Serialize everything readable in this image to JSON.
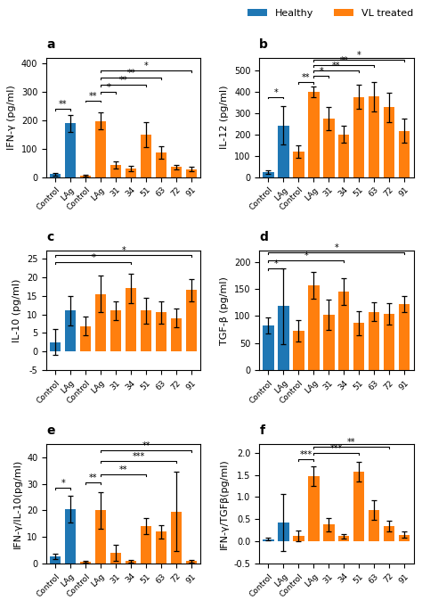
{
  "chart_data": [
    {
      "type": "bar",
      "title": "a",
      "y_label": "IFN-γ (pg/ml)",
      "categories": [
        "Control",
        "LAg",
        "Control",
        "LAg",
        "31",
        "34",
        "51",
        "63",
        "72",
        "91"
      ],
      "series": [
        {
          "name": "Healthy",
          "values": [
            10,
            190,
            null,
            null,
            null,
            null,
            null,
            null,
            null,
            null
          ],
          "errors": [
            4,
            30,
            null,
            null,
            null,
            null,
            null,
            null,
            null,
            null
          ]
        },
        {
          "name": "VL treated",
          "values": [
            null,
            null,
            5,
            198,
            43,
            30,
            150,
            87,
            35,
            28
          ],
          "errors": [
            null,
            null,
            2,
            30,
            12,
            8,
            45,
            22,
            8,
            8
          ]
        }
      ],
      "ylim": [
        0,
        420
      ],
      "yticks": [
        0,
        100,
        200,
        300,
        400
      ],
      "significance": [
        {
          "x1": 0,
          "x2": 1,
          "y": 235,
          "stars": "**"
        },
        {
          "x1": 2,
          "x2": 3,
          "y": 265,
          "stars": "**"
        },
        {
          "x1": 3,
          "x2": 4,
          "y": 295,
          "stars": "*"
        },
        {
          "x1": 3,
          "x2": 6,
          "y": 320,
          "stars": "**"
        },
        {
          "x1": 3,
          "x2": 7,
          "y": 345,
          "stars": "**"
        },
        {
          "x1": 3,
          "x2": 9,
          "y": 370,
          "stars": "*"
        }
      ],
      "legend": "upper right"
    },
    {
      "type": "bar",
      "title": "b",
      "y_label": "IL-12 (pg/ml)",
      "categories": [
        "Control",
        "LAg",
        "Control",
        "LAg",
        "31",
        "34",
        "51",
        "63",
        "72",
        "91"
      ],
      "series": [
        {
          "name": "Healthy",
          "values": [
            25,
            242,
            null,
            null,
            null,
            null,
            null,
            null,
            null,
            null
          ],
          "errors": [
            8,
            90,
            null,
            null,
            null,
            null,
            null,
            null,
            null,
            null
          ]
        },
        {
          "name": "VL treated",
          "values": [
            null,
            null,
            120,
            402,
            275,
            200,
            377,
            378,
            328,
            218
          ],
          "errors": [
            null,
            null,
            28,
            25,
            55,
            40,
            55,
            70,
            70,
            55
          ]
        }
      ],
      "ylim": [
        0,
        560
      ],
      "yticks": [
        0,
        100,
        200,
        300,
        400,
        500
      ],
      "significance": [
        {
          "x1": 0,
          "x2": 1,
          "y": 370,
          "stars": "*"
        },
        {
          "x1": 2,
          "x2": 3,
          "y": 440,
          "stars": "**"
        },
        {
          "x1": 3,
          "x2": 4,
          "y": 468,
          "stars": "*"
        },
        {
          "x1": 3,
          "x2": 6,
          "y": 493,
          "stars": "**"
        },
        {
          "x1": 3,
          "x2": 7,
          "y": 518,
          "stars": "**"
        },
        {
          "x1": 3,
          "x2": 9,
          "y": 543,
          "stars": "*"
        }
      ]
    },
    {
      "type": "bar",
      "title": "c",
      "y_label": "IL-10 (pg/ml)",
      "categories": [
        "Control",
        "LAg",
        "Control",
        "LAg",
        "31",
        "34",
        "51",
        "63",
        "72",
        "91"
      ],
      "series": [
        {
          "name": "Healthy",
          "values": [
            2.5,
            11,
            null,
            null,
            null,
            null,
            null,
            null,
            null,
            null
          ],
          "errors": [
            3.5,
            4,
            null,
            null,
            null,
            null,
            null,
            null,
            null,
            null
          ]
        },
        {
          "name": "VL treated",
          "values": [
            null,
            null,
            6.8,
            15.5,
            11,
            17,
            11,
            10.5,
            9,
            16.5
          ],
          "errors": [
            null,
            null,
            2.5,
            5,
            2.5,
            4,
            3.5,
            3,
            2.5,
            3
          ]
        }
      ],
      "ylim": [
        -5,
        27
      ],
      "yticks": [
        -5,
        0,
        5,
        10,
        15,
        20,
        25
      ],
      "significance": [
        {
          "x1": 0,
          "x2": 5,
          "y": 23.5,
          "stars": "*"
        },
        {
          "x1": 0,
          "x2": 9,
          "y": 25.5,
          "stars": "*"
        }
      ]
    },
    {
      "type": "bar",
      "title": "d",
      "y_label": "TGF-β (pg/ml)",
      "categories": [
        "Control",
        "LAg",
        "Control",
        "LAg",
        "31",
        "34",
        "51",
        "63",
        "72",
        "91"
      ],
      "series": [
        {
          "name": "Healthy",
          "values": [
            82,
            118,
            null,
            null,
            null,
            null,
            null,
            null,
            null,
            null
          ],
          "errors": [
            15,
            70,
            null,
            null,
            null,
            null,
            null,
            null,
            null,
            null
          ]
        },
        {
          "name": "VL treated",
          "values": [
            null,
            null,
            73,
            157,
            102,
            145,
            87,
            108,
            104,
            122
          ],
          "errors": [
            null,
            null,
            20,
            25,
            28,
            25,
            22,
            18,
            20,
            15
          ]
        }
      ],
      "ylim": [
        0,
        220
      ],
      "yticks": [
        0,
        50,
        100,
        150,
        200
      ],
      "significance": [
        {
          "x1": 0,
          "x2": 1,
          "y": 185,
          "stars": "*"
        },
        {
          "x1": 0,
          "x2": 5,
          "y": 200,
          "stars": "*"
        },
        {
          "x1": 0,
          "x2": 9,
          "y": 215,
          "stars": "*"
        }
      ]
    },
    {
      "type": "bar",
      "title": "e",
      "y_label": "IFN-γ/IL-10(pg/ml)",
      "categories": [
        "Control",
        "LAg",
        "Control",
        "LAg",
        "31",
        "34",
        "51",
        "63",
        "72",
        "91"
      ],
      "series": [
        {
          "name": "Healthy",
          "values": [
            2.5,
            20.5,
            null,
            null,
            null,
            null,
            null,
            null,
            null,
            null
          ],
          "errors": [
            1,
            5,
            null,
            null,
            null,
            null,
            null,
            null,
            null,
            null
          ]
        },
        {
          "name": "VL treated",
          "values": [
            null,
            null,
            0.5,
            20,
            4,
            0.8,
            14,
            12,
            19.5,
            0.8
          ],
          "errors": [
            null,
            null,
            0.3,
            7,
            3,
            0.5,
            3,
            2.5,
            15,
            0.5
          ]
        }
      ],
      "ylim": [
        0,
        45
      ],
      "yticks": [
        0,
        10,
        20,
        30,
        40
      ],
      "significance": [
        {
          "x1": 0,
          "x2": 1,
          "y": 28,
          "stars": "*"
        },
        {
          "x1": 2,
          "x2": 3,
          "y": 30,
          "stars": "**"
        },
        {
          "x1": 3,
          "x2": 6,
          "y": 33,
          "stars": "**"
        },
        {
          "x1": 3,
          "x2": 8,
          "y": 38,
          "stars": "***"
        },
        {
          "x1": 3,
          "x2": 9,
          "y": 42,
          "stars": "**"
        }
      ]
    },
    {
      "type": "bar",
      "title": "f",
      "y_label": "IFN-γ/TGFβ(pg/ml)",
      "categories": [
        "Control",
        "LAg",
        "Control",
        "LAg",
        "31",
        "34",
        "51",
        "63",
        "72",
        "91"
      ],
      "series": [
        {
          "name": "Healthy",
          "values": [
            0.05,
            0.43,
            null,
            null,
            null,
            null,
            null,
            null,
            null,
            null
          ],
          "errors": [
            0.03,
            0.65,
            null,
            null,
            null,
            null,
            null,
            null,
            null,
            null
          ]
        },
        {
          "name": "VL treated",
          "values": [
            null,
            null,
            0.12,
            1.48,
            0.38,
            0.12,
            1.58,
            0.7,
            0.35,
            0.15
          ],
          "errors": [
            null,
            null,
            0.12,
            0.22,
            0.15,
            0.05,
            0.22,
            0.22,
            0.12,
            0.07
          ]
        }
      ],
      "ylim": [
        -0.5,
        2.2
      ],
      "yticks": [
        -0.5,
        0.0,
        0.5,
        1.0,
        1.5,
        2.0
      ],
      "significance": [
        {
          "x1": 2,
          "x2": 3,
          "y": 1.82,
          "stars": "***"
        },
        {
          "x1": 3,
          "x2": 6,
          "y": 1.96,
          "stars": "***"
        },
        {
          "x1": 3,
          "x2": 8,
          "y": 2.1,
          "stars": "**"
        }
      ]
    }
  ]
}
